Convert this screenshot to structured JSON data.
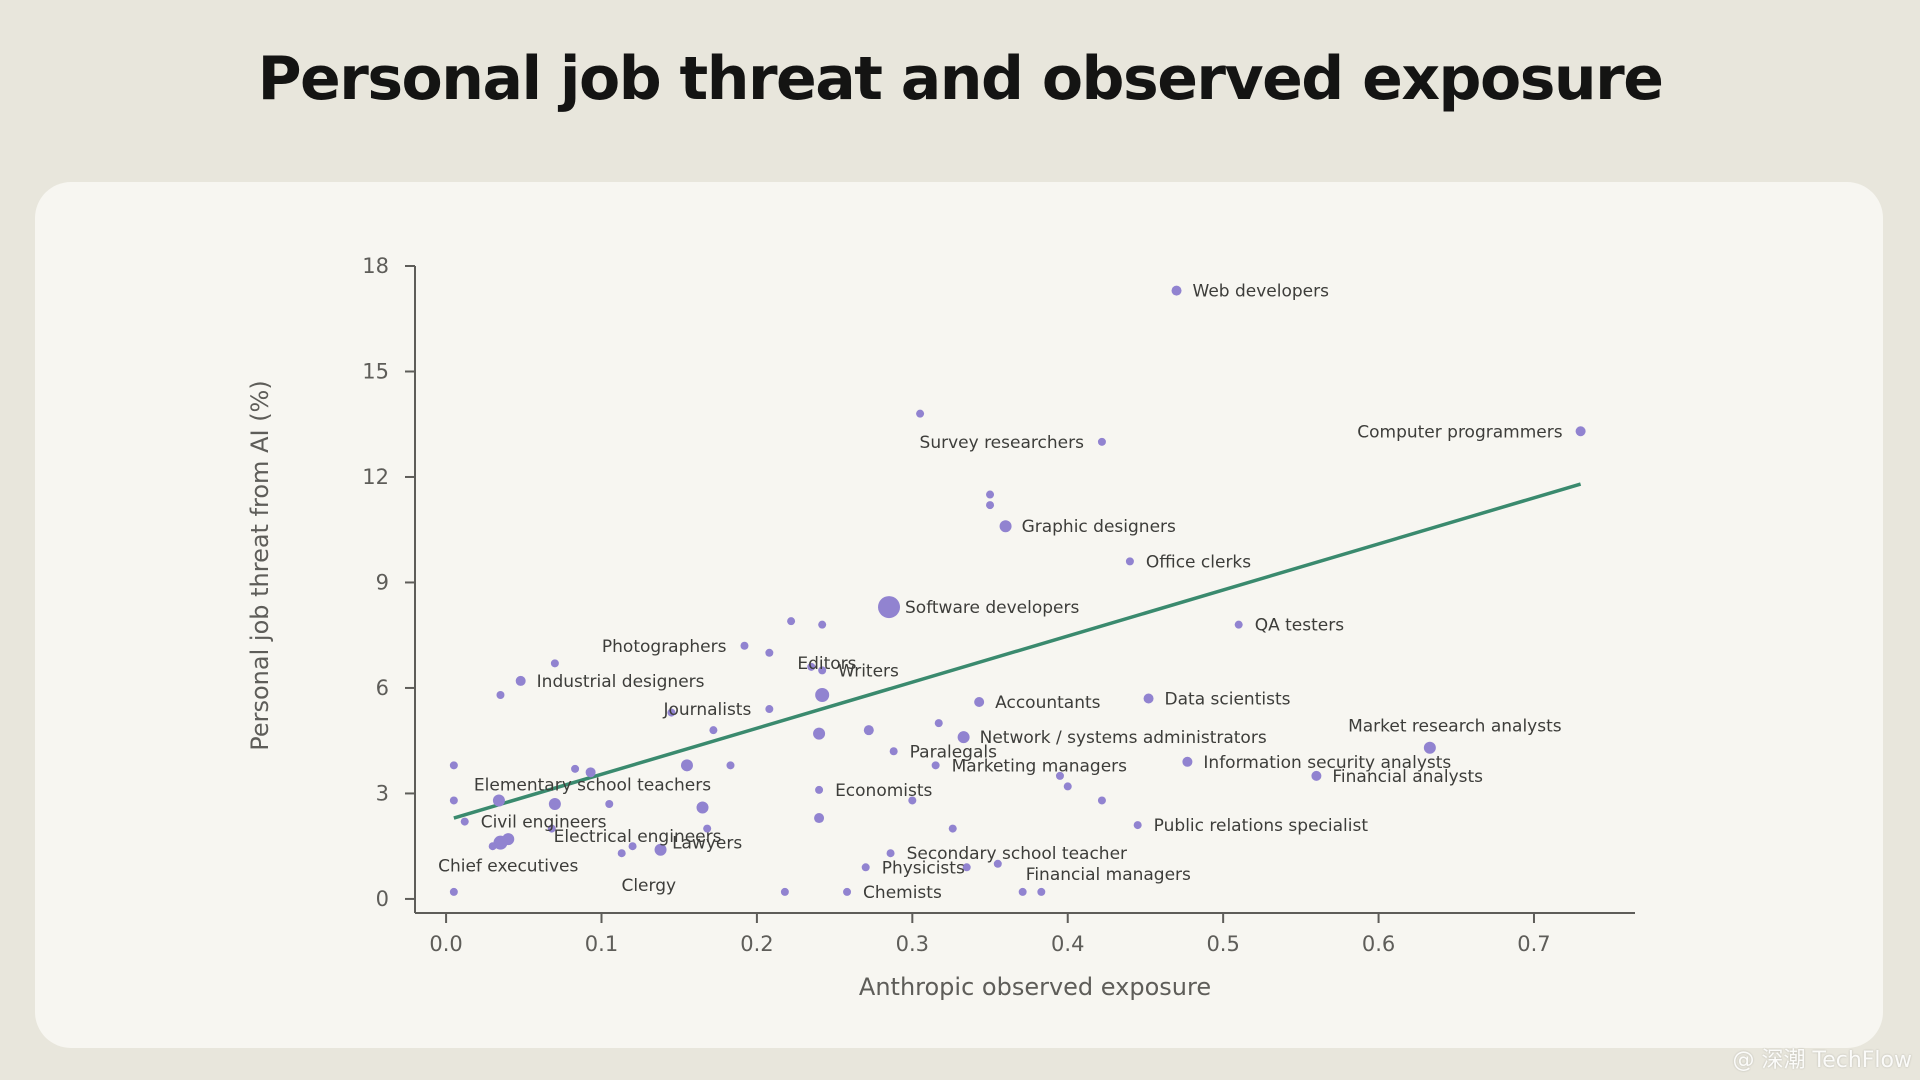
{
  "page": {
    "title": "Personal job threat and observed exposure",
    "watermark": "@ 深潮 TechFlow"
  },
  "colors": {
    "background": "#e8e6dc",
    "card": "#f7f6f1",
    "point": "#9183d0",
    "trendline": "#3a8a6e",
    "axis": "#5e5d59"
  },
  "chart_data": {
    "type": "scatter",
    "title": "Personal job threat and observed exposure",
    "xlabel": "Anthropic observed exposure",
    "ylabel": "Personal job threat from AI (%)",
    "xlim": [
      -0.02,
      0.765
    ],
    "ylim": [
      -0.4,
      18
    ],
    "xticks": [
      0.0,
      0.1,
      0.2,
      0.3,
      0.4,
      0.5,
      0.6,
      0.7
    ],
    "xtick_labels": [
      "0.0",
      "0.1",
      "0.2",
      "0.3",
      "0.4",
      "0.5",
      "0.6",
      "0.7"
    ],
    "yticks": [
      0,
      3,
      6,
      9,
      12,
      15,
      18
    ],
    "ytick_labels": [
      "0",
      "3",
      "6",
      "9",
      "12",
      "15",
      "18"
    ],
    "grid": false,
    "trendline": {
      "x": [
        0.005,
        0.73
      ],
      "y": [
        2.3,
        11.8
      ]
    },
    "points": [
      {
        "x": 0.47,
        "y": 17.3,
        "s": 5,
        "label": "Web developers",
        "lpos": "right"
      },
      {
        "x": 0.73,
        "y": 13.3,
        "s": 5,
        "label": "Computer programmers",
        "lpos": "left"
      },
      {
        "x": 0.305,
        "y": 13.8,
        "s": 4,
        "label": "",
        "lpos": "right"
      },
      {
        "x": 0.422,
        "y": 13.0,
        "s": 4,
        "label": "Survey researchers",
        "lpos": "left"
      },
      {
        "x": 0.35,
        "y": 11.5,
        "s": 4,
        "label": "",
        "lpos": "right"
      },
      {
        "x": 0.35,
        "y": 11.2,
        "s": 4,
        "label": "",
        "lpos": "right"
      },
      {
        "x": 0.36,
        "y": 10.6,
        "s": 6,
        "label": "Graphic designers",
        "lpos": "right"
      },
      {
        "x": 0.44,
        "y": 9.6,
        "s": 4,
        "label": "Office clerks",
        "lpos": "right"
      },
      {
        "x": 0.285,
        "y": 8.3,
        "s": 11,
        "label": "Software developers",
        "lpos": "right"
      },
      {
        "x": 0.51,
        "y": 7.8,
        "s": 4,
        "label": "QA testers",
        "lpos": "right"
      },
      {
        "x": 0.222,
        "y": 7.9,
        "s": 4,
        "label": "",
        "lpos": "right"
      },
      {
        "x": 0.242,
        "y": 7.8,
        "s": 4,
        "label": "",
        "lpos": "right"
      },
      {
        "x": 0.192,
        "y": 7.2,
        "s": 4,
        "label": "Photographers",
        "lpos": "left"
      },
      {
        "x": 0.208,
        "y": 7.0,
        "s": 4,
        "label": "Editors",
        "lpos": "below-right"
      },
      {
        "x": 0.07,
        "y": 6.7,
        "s": 4,
        "label": "",
        "lpos": "right"
      },
      {
        "x": 0.048,
        "y": 6.2,
        "s": 5,
        "label": "Industrial designers",
        "lpos": "right"
      },
      {
        "x": 0.235,
        "y": 6.6,
        "s": 4,
        "label": "",
        "lpos": "right"
      },
      {
        "x": 0.242,
        "y": 6.5,
        "s": 4,
        "label": "Writers",
        "lpos": "right"
      },
      {
        "x": 0.035,
        "y": 5.8,
        "s": 4,
        "label": "",
        "lpos": "right"
      },
      {
        "x": 0.242,
        "y": 5.8,
        "s": 7,
        "label": "",
        "lpos": "right"
      },
      {
        "x": 0.208,
        "y": 5.4,
        "s": 4,
        "label": "Journalists",
        "lpos": "left"
      },
      {
        "x": 0.145,
        "y": 5.3,
        "s": 4,
        "label": "",
        "lpos": "right"
      },
      {
        "x": 0.343,
        "y": 5.6,
        "s": 5,
        "label": "Accountants",
        "lpos": "right"
      },
      {
        "x": 0.452,
        "y": 5.7,
        "s": 5,
        "label": "Data scientists",
        "lpos": "right"
      },
      {
        "x": 0.317,
        "y": 5.0,
        "s": 4,
        "label": "",
        "lpos": "right"
      },
      {
        "x": 0.172,
        "y": 4.8,
        "s": 4,
        "label": "",
        "lpos": "right"
      },
      {
        "x": 0.24,
        "y": 4.7,
        "s": 6,
        "label": "",
        "lpos": "right"
      },
      {
        "x": 0.272,
        "y": 4.8,
        "s": 5,
        "label": "",
        "lpos": "right"
      },
      {
        "x": 0.333,
        "y": 4.6,
        "s": 6,
        "label": "Network / systems administrators",
        "lpos": "right"
      },
      {
        "x": 0.633,
        "y": 4.3,
        "s": 6,
        "label": "Market research analysts",
        "lpos": "above"
      },
      {
        "x": 0.288,
        "y": 4.2,
        "s": 4,
        "label": "Paralegals",
        "lpos": "right"
      },
      {
        "x": 0.477,
        "y": 3.9,
        "s": 5,
        "label": "Information security analysts",
        "lpos": "right"
      },
      {
        "x": 0.315,
        "y": 3.8,
        "s": 4,
        "label": "Marketing managers",
        "lpos": "right"
      },
      {
        "x": 0.56,
        "y": 3.5,
        "s": 5,
        "label": "Financial analysts",
        "lpos": "right"
      },
      {
        "x": 0.005,
        "y": 3.8,
        "s": 4,
        "label": "",
        "lpos": "right"
      },
      {
        "x": 0.083,
        "y": 3.7,
        "s": 4,
        "label": "",
        "lpos": "right"
      },
      {
        "x": 0.093,
        "y": 3.6,
        "s": 5,
        "label": "",
        "lpos": "right"
      },
      {
        "x": 0.155,
        "y": 3.8,
        "s": 6,
        "label": "",
        "lpos": "right"
      },
      {
        "x": 0.183,
        "y": 3.8,
        "s": 4,
        "label": "",
        "lpos": "right"
      },
      {
        "x": 0.395,
        "y": 3.5,
        "s": 4,
        "label": "",
        "lpos": "right"
      },
      {
        "x": 0.4,
        "y": 3.2,
        "s": 4,
        "label": "",
        "lpos": "right"
      },
      {
        "x": 0.24,
        "y": 3.1,
        "s": 4,
        "label": "Economists",
        "lpos": "right"
      },
      {
        "x": 0.005,
        "y": 2.8,
        "s": 4,
        "label": "",
        "lpos": "right"
      },
      {
        "x": 0.034,
        "y": 2.8,
        "s": 6,
        "label": "Elementary school teachers",
        "lpos": "above-right"
      },
      {
        "x": 0.07,
        "y": 2.7,
        "s": 6,
        "label": "",
        "lpos": "right"
      },
      {
        "x": 0.105,
        "y": 2.7,
        "s": 4,
        "label": "",
        "lpos": "right"
      },
      {
        "x": 0.165,
        "y": 2.6,
        "s": 6,
        "label": "",
        "lpos": "right"
      },
      {
        "x": 0.3,
        "y": 2.8,
        "s": 4,
        "label": "",
        "lpos": "right"
      },
      {
        "x": 0.422,
        "y": 2.8,
        "s": 4,
        "label": "",
        "lpos": "right"
      },
      {
        "x": 0.012,
        "y": 2.2,
        "s": 4,
        "label": "Civil engineers",
        "lpos": "right"
      },
      {
        "x": 0.068,
        "y": 2.0,
        "s": 4,
        "label": "",
        "lpos": "right"
      },
      {
        "x": 0.24,
        "y": 2.3,
        "s": 5,
        "label": "",
        "lpos": "right"
      },
      {
        "x": 0.168,
        "y": 2.0,
        "s": 4,
        "label": "Lawyers",
        "lpos": "below"
      },
      {
        "x": 0.445,
        "y": 2.1,
        "s": 4,
        "label": "Public relations specialist",
        "lpos": "right"
      },
      {
        "x": 0.326,
        "y": 2.0,
        "s": 4,
        "label": "",
        "lpos": "right"
      },
      {
        "x": 0.04,
        "y": 1.7,
        "s": 6,
        "label": "",
        "lpos": "right"
      },
      {
        "x": 0.035,
        "y": 1.6,
        "s": 7,
        "label": "",
        "lpos": "right"
      },
      {
        "x": 0.03,
        "y": 1.5,
        "s": 4,
        "label": "",
        "lpos": "right"
      },
      {
        "x": 0.12,
        "y": 1.5,
        "s": 4,
        "label": "Electrical engineers",
        "lpos": "center"
      },
      {
        "x": 0.138,
        "y": 1.4,
        "s": 6,
        "label": "",
        "lpos": "right"
      },
      {
        "x": 0.113,
        "y": 1.3,
        "s": 4,
        "label": "",
        "lpos": "right"
      },
      {
        "x": 0.286,
        "y": 1.3,
        "s": 4,
        "label": "Secondary school teacher",
        "lpos": "right"
      },
      {
        "x": 0.355,
        "y": 1.0,
        "s": 4,
        "label": "Financial managers",
        "lpos": "below-right"
      },
      {
        "x": 0.335,
        "y": 0.9,
        "s": 4,
        "label": "",
        "lpos": "right"
      },
      {
        "x": 0.27,
        "y": 0.9,
        "s": 4,
        "label": "Physicists",
        "lpos": "right"
      },
      {
        "x": 0.0,
        "y": 0.95,
        "s": 0,
        "label": "Chief executives",
        "lpos": "text-only"
      },
      {
        "x": 0.118,
        "y": 0.4,
        "s": 0,
        "label": "Clergy",
        "lpos": "text-only"
      },
      {
        "x": 0.005,
        "y": 0.2,
        "s": 4,
        "label": "",
        "lpos": "right"
      },
      {
        "x": 0.218,
        "y": 0.2,
        "s": 4,
        "label": "",
        "lpos": "right"
      },
      {
        "x": 0.258,
        "y": 0.2,
        "s": 4,
        "label": "Chemists",
        "lpos": "right"
      },
      {
        "x": 0.371,
        "y": 0.2,
        "s": 4,
        "label": "",
        "lpos": "right"
      },
      {
        "x": 0.383,
        "y": 0.2,
        "s": 4,
        "label": "",
        "lpos": "right"
      }
    ]
  }
}
